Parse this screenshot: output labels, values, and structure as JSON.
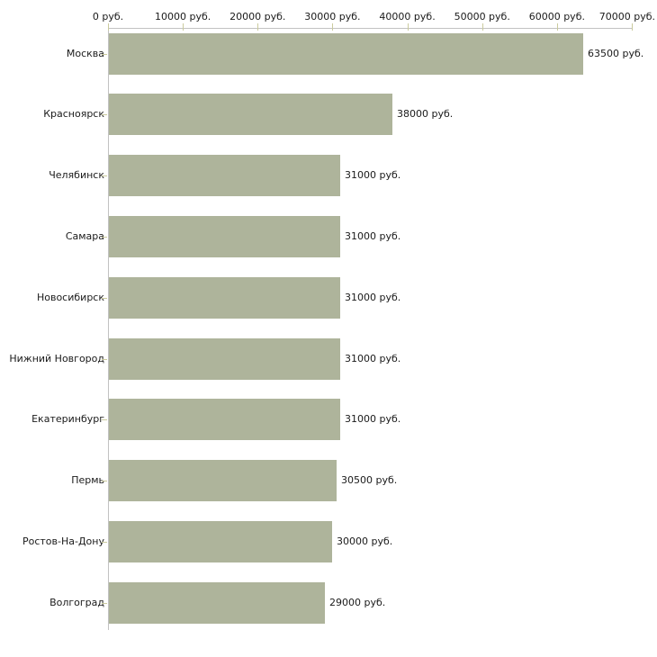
{
  "chart_data": {
    "type": "bar",
    "orientation": "horizontal",
    "title": "",
    "unit": "руб.",
    "categories": [
      "Москва",
      "Красноярск",
      "Челябинск",
      "Самара",
      "Новосибирск",
      "Нижний Новгород",
      "Екатеринбург",
      "Пермь",
      "Ростов-На-Дону",
      "Волгоград"
    ],
    "values": [
      63500,
      38000,
      31000,
      31000,
      31000,
      31000,
      31000,
      30500,
      30000,
      29000
    ],
    "value_labels": [
      "63500 руб.",
      "38000 руб.",
      "31000 руб.",
      "31000 руб.",
      "31000 руб.",
      "31000 руб.",
      "31000 руб.",
      "30500 руб.",
      "30000 руб.",
      "29000 руб."
    ],
    "x_axis": {
      "min": 0,
      "max": 70000,
      "ticks": [
        0,
        10000,
        20000,
        30000,
        40000,
        50000,
        60000,
        70000
      ],
      "tick_labels": [
        "0 руб.",
        "10000 руб.",
        "20000 руб.",
        "30000 руб.",
        "40000 руб.",
        "50000 руб.",
        "60000 руб.",
        "70000 руб."
      ]
    },
    "grid": "off",
    "legend": "none",
    "colors": {
      "bar": "#aeb49b",
      "axis_line": "#c2c2c2",
      "tick_mark": "#cbcb9e",
      "text": "#1a1a1a",
      "background": "#ffffff"
    }
  }
}
